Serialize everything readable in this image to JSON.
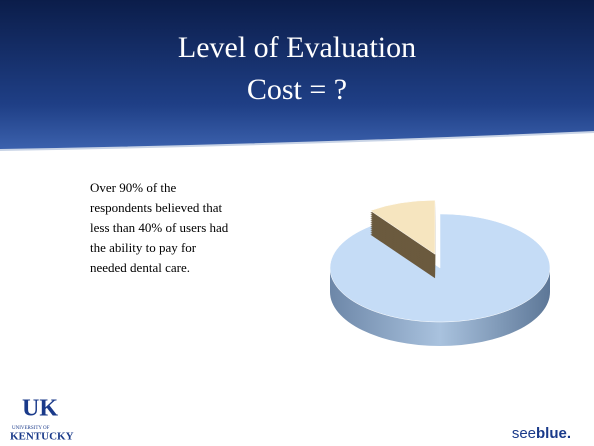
{
  "slide": {
    "title_lines": [
      "Level of Evaluation",
      "Cost = ?"
    ],
    "body_lines": [
      "Over 90% of the",
      "respondents believed that",
      "less than 40% of users had",
      "the ability to pay for",
      "needed dental care."
    ],
    "logo_left": {
      "mark": "UK",
      "small": "UNIVERSITY OF",
      "name": "KENTUCKY"
    },
    "logo_right": {
      "first": "see",
      "second": "blue."
    }
  },
  "chart_data": {
    "type": "pie",
    "categories": [
      null,
      null
    ],
    "values": [
      90,
      10
    ],
    "colors": [
      "#c5dcf6",
      "#f6e5bf"
    ],
    "side_colors": [
      "#7f9ab8",
      "#6b5a3e"
    ]
  }
}
